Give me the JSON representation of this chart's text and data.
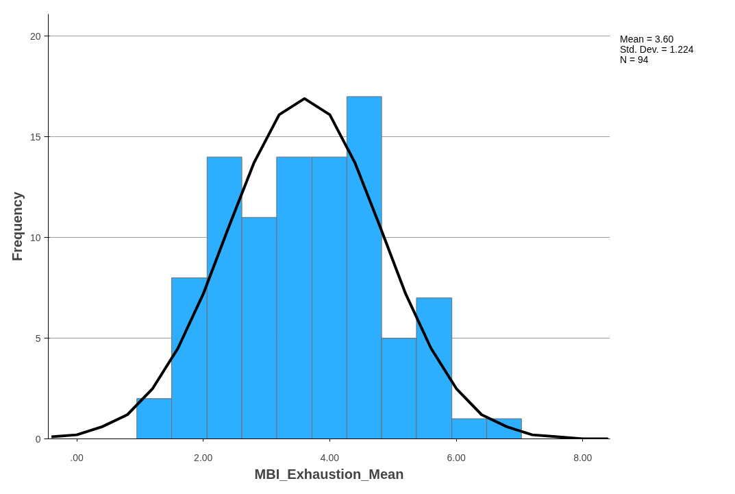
{
  "chart_data": {
    "type": "histogram",
    "xlabel": "MBI_Exhaustion_Mean",
    "ylabel": "Frequency",
    "bins": [
      0.95,
      1.5,
      2.06,
      2.61,
      3.16,
      3.72,
      4.27,
      4.82,
      5.37,
      5.93,
      6.48,
      7.03
    ],
    "values": [
      2,
      8,
      14,
      11,
      14,
      14,
      17,
      5,
      7,
      1,
      1
    ],
    "color": "#2eaefe",
    "series": [
      {
        "type": "line",
        "color": "#000000",
        "x": [
          -0.4,
          0.0,
          0.4,
          0.8,
          1.2,
          1.6,
          2.0,
          2.4,
          2.8,
          3.2,
          3.6,
          4.0,
          4.4,
          4.8,
          5.2,
          5.6,
          6.0,
          6.4,
          6.8,
          7.2,
          7.6,
          8.0,
          8.4
        ],
        "values": [
          0.1,
          0.2,
          0.6,
          1.2,
          2.5,
          4.5,
          7.2,
          10.5,
          13.7,
          16.1,
          16.9,
          16.1,
          13.7,
          10.5,
          7.2,
          4.5,
          2.5,
          1.2,
          0.6,
          0.2,
          0.1,
          0.0,
          0.0
        ]
      }
    ],
    "xlim": [
      -0.45,
      8.43
    ],
    "ylim": [
      0,
      21.1
    ],
    "xticks": [
      {
        "value": 0,
        "label": ".00"
      },
      {
        "value": 2,
        "label": "2.00"
      },
      {
        "value": 4,
        "label": "4.00"
      },
      {
        "value": 6,
        "label": "6.00"
      },
      {
        "value": 8,
        "label": "8.00"
      }
    ],
    "yticks": [
      0,
      5,
      10,
      15,
      20
    ],
    "grid": "y",
    "annotations": [
      "Mean = 3.60",
      "Std. Dev. = 1.224",
      "N = 94"
    ]
  }
}
